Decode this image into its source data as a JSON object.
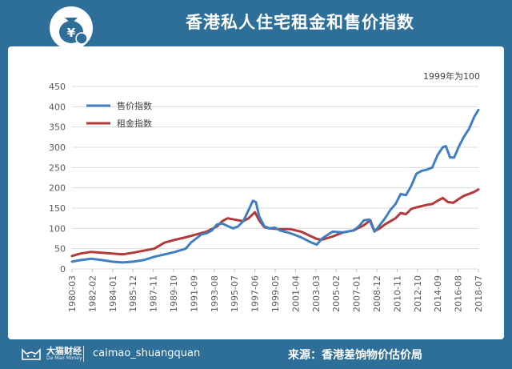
{
  "title": "香港私人住宅租金和售价指数",
  "logo_icon": "money-bag-yen-icon",
  "chart_data": {
    "type": "line",
    "note": "1999年为100",
    "ylim": [
      0,
      450
    ],
    "yticks": [
      0,
      50,
      100,
      150,
      200,
      250,
      300,
      350,
      400,
      450
    ],
    "x_tick_labels": [
      "1980-03",
      "1982-02",
      "1984-01",
      "1985-12",
      "1987-11",
      "1989-10",
      "1991-09",
      "1993-08",
      "1995-07",
      "1997-06",
      "1999-05",
      "2001-04",
      "2003-03",
      "2005-02",
      "2007-01",
      "2008-12",
      "2010-11",
      "2012-10",
      "2014-09",
      "2016-08",
      "2018-07"
    ],
    "x_range": [
      1980.17,
      2018.9
    ],
    "legend_position": "top-left",
    "series": [
      {
        "name": "售价指数",
        "color": "#3f7fc1",
        "points": [
          [
            1980.17,
            18
          ],
          [
            1981.0,
            22
          ],
          [
            1982.0,
            25
          ],
          [
            1983.0,
            22
          ],
          [
            1984.0,
            18
          ],
          [
            1985.0,
            16
          ],
          [
            1986.0,
            18
          ],
          [
            1987.0,
            22
          ],
          [
            1988.0,
            30
          ],
          [
            1989.0,
            36
          ],
          [
            1990.0,
            42
          ],
          [
            1991.0,
            50
          ],
          [
            1991.5,
            65
          ],
          [
            1992.0,
            75
          ],
          [
            1992.5,
            85
          ],
          [
            1993.0,
            88
          ],
          [
            1993.5,
            95
          ],
          [
            1994.0,
            110
          ],
          [
            1994.5,
            112
          ],
          [
            1995.0,
            106
          ],
          [
            1995.5,
            100
          ],
          [
            1996.0,
            105
          ],
          [
            1996.5,
            118
          ],
          [
            1997.0,
            145
          ],
          [
            1997.4,
            168
          ],
          [
            1997.7,
            165
          ],
          [
            1998.0,
            130
          ],
          [
            1998.5,
            105
          ],
          [
            1999.0,
            100
          ],
          [
            1999.5,
            102
          ],
          [
            2000.0,
            95
          ],
          [
            2001.0,
            88
          ],
          [
            2002.0,
            78
          ],
          [
            2003.0,
            65
          ],
          [
            2003.5,
            60
          ],
          [
            2004.0,
            75
          ],
          [
            2005.0,
            92
          ],
          [
            2006.0,
            90
          ],
          [
            2007.0,
            95
          ],
          [
            2007.5,
            105
          ],
          [
            2008.0,
            120
          ],
          [
            2008.5,
            122
          ],
          [
            2009.0,
            92
          ],
          [
            2009.5,
            108
          ],
          [
            2010.0,
            125
          ],
          [
            2010.5,
            145
          ],
          [
            2011.0,
            160
          ],
          [
            2011.5,
            185
          ],
          [
            2012.0,
            182
          ],
          [
            2012.5,
            205
          ],
          [
            2013.0,
            235
          ],
          [
            2013.5,
            242
          ],
          [
            2014.0,
            245
          ],
          [
            2014.5,
            250
          ],
          [
            2015.0,
            280
          ],
          [
            2015.5,
            300
          ],
          [
            2015.8,
            303
          ],
          [
            2016.2,
            275
          ],
          [
            2016.6,
            275
          ],
          [
            2017.0,
            300
          ],
          [
            2017.5,
            325
          ],
          [
            2018.0,
            345
          ],
          [
            2018.5,
            375
          ],
          [
            2018.9,
            392
          ]
        ]
      },
      {
        "name": "租金指数",
        "color": "#b23a3a",
        "points": [
          [
            1980.17,
            32
          ],
          [
            1981.0,
            38
          ],
          [
            1982.0,
            42
          ],
          [
            1983.0,
            40
          ],
          [
            1984.0,
            38
          ],
          [
            1985.0,
            36
          ],
          [
            1986.0,
            40
          ],
          [
            1987.0,
            45
          ],
          [
            1988.0,
            50
          ],
          [
            1989.0,
            65
          ],
          [
            1990.0,
            72
          ],
          [
            1991.0,
            78
          ],
          [
            1992.0,
            85
          ],
          [
            1993.0,
            92
          ],
          [
            1994.0,
            105
          ],
          [
            1994.5,
            118
          ],
          [
            1995.0,
            125
          ],
          [
            1996.0,
            120
          ],
          [
            1996.5,
            118
          ],
          [
            1997.0,
            125
          ],
          [
            1997.6,
            140
          ],
          [
            1998.0,
            120
          ],
          [
            1998.5,
            103
          ],
          [
            1999.0,
            100
          ],
          [
            2000.0,
            98
          ],
          [
            2001.0,
            98
          ],
          [
            2002.0,
            92
          ],
          [
            2003.0,
            80
          ],
          [
            2003.5,
            74
          ],
          [
            2004.0,
            72
          ],
          [
            2005.0,
            80
          ],
          [
            2006.0,
            90
          ],
          [
            2007.0,
            95
          ],
          [
            2008.0,
            108
          ],
          [
            2008.6,
            120
          ],
          [
            2009.0,
            93
          ],
          [
            2009.5,
            100
          ],
          [
            2010.0,
            110
          ],
          [
            2011.0,
            125
          ],
          [
            2011.5,
            138
          ],
          [
            2012.0,
            135
          ],
          [
            2012.5,
            148
          ],
          [
            2013.0,
            152
          ],
          [
            2014.0,
            158
          ],
          [
            2014.5,
            160
          ],
          [
            2015.0,
            168
          ],
          [
            2015.5,
            175
          ],
          [
            2016.0,
            165
          ],
          [
            2016.5,
            163
          ],
          [
            2017.0,
            172
          ],
          [
            2017.5,
            180
          ],
          [
            2018.0,
            185
          ],
          [
            2018.5,
            190
          ],
          [
            2018.9,
            196
          ]
        ]
      }
    ]
  },
  "footer": {
    "brand_cn": "大猫财经",
    "brand_en": "Da Mao Money",
    "brand_icon": "cat-logo-icon",
    "handle": "caimao_shuangquan",
    "source": "来源：香港差饷物价估价局"
  }
}
